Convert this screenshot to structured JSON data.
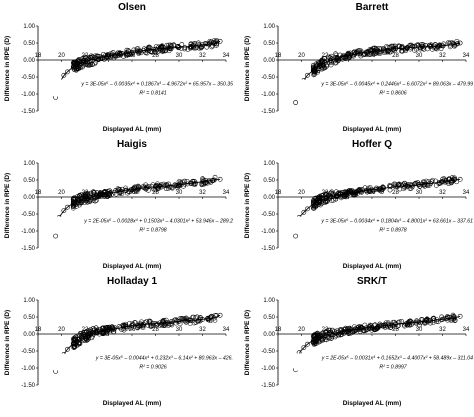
{
  "chart_data": [
    {
      "type": "scatter",
      "title": "Olsen",
      "xlabel": "Displayed AL (mm)",
      "ylabel": "Difference in RPE (D)",
      "xlim": [
        18,
        34
      ],
      "ylim": [
        -1.5,
        1.0
      ],
      "xticks": [
        "18",
        "20",
        "22",
        "24",
        "26",
        "28",
        "30",
        "32",
        "34"
      ],
      "yticks": [
        "-1.50",
        "-1.00",
        "-0.50",
        "0.00",
        "0.50",
        "1.00"
      ],
      "equation": "y = 3E-05x⁵ – 0.0035x⁴ + 0.1867x³ – 4.9672x² + 65.957x – 350.35",
      "r2": "R² = 0.8141",
      "points": [
        [
          19.5,
          -1.1
        ],
        [
          19.8,
          -0.7
        ],
        [
          20.2,
          -0.45
        ],
        [
          20.5,
          -0.35
        ],
        [
          21,
          -0.2
        ],
        [
          21.5,
          -0.12
        ],
        [
          22,
          -0.05
        ],
        [
          22.5,
          0.0
        ],
        [
          23,
          0.04
        ],
        [
          23.5,
          0.08
        ],
        [
          24,
          0.1
        ],
        [
          24.5,
          0.14
        ],
        [
          25,
          0.16
        ],
        [
          25.5,
          0.2
        ],
        [
          26,
          0.22
        ],
        [
          26.5,
          0.25
        ],
        [
          27,
          0.28
        ],
        [
          28,
          0.32
        ],
        [
          29,
          0.35
        ],
        [
          30,
          0.37
        ],
        [
          31,
          0.4
        ],
        [
          32,
          0.45
        ],
        [
          33,
          0.48
        ],
        [
          33.5,
          0.55
        ]
      ]
    },
    {
      "type": "scatter",
      "title": "Barrett",
      "xlabel": "Displayed AL (mm)",
      "ylabel": "Difference in RPE (D)",
      "xlim": [
        18,
        34
      ],
      "ylim": [
        -1.5,
        1.0
      ],
      "xticks": [
        "18",
        "20",
        "22",
        "24",
        "26",
        "28",
        "30",
        "32",
        "34"
      ],
      "yticks": [
        "-1.50",
        "-1.00",
        "-0.50",
        "0.00",
        "0.50",
        "1.00"
      ],
      "equation": "y = 3E-05x⁵ – 0.0045x⁴ + 0.2446x³ – 6.6072x² + 89.063x – 479.99",
      "r2": "R² = 0.8606",
      "points": [
        [
          19.5,
          -1.25
        ],
        [
          19.8,
          -0.9
        ],
        [
          20.2,
          -0.6
        ],
        [
          20.5,
          -0.45
        ],
        [
          21,
          -0.3
        ],
        [
          21.5,
          -0.18
        ],
        [
          22,
          -0.08
        ],
        [
          22.5,
          0.0
        ],
        [
          23,
          0.05
        ],
        [
          23.5,
          0.1
        ],
        [
          24,
          0.13
        ],
        [
          24.5,
          0.16
        ],
        [
          25,
          0.2
        ],
        [
          25.5,
          0.23
        ],
        [
          26,
          0.26
        ],
        [
          26.5,
          0.28
        ],
        [
          27,
          0.3
        ],
        [
          28,
          0.33
        ],
        [
          29,
          0.36
        ],
        [
          30,
          0.38
        ],
        [
          31,
          0.4
        ],
        [
          32,
          0.42
        ],
        [
          33,
          0.45
        ],
        [
          33.5,
          0.5
        ]
      ]
    },
    {
      "type": "scatter",
      "title": "Haigis",
      "xlabel": "Displayed AL (mm)",
      "ylabel": "Difference in RPE (D)",
      "xlim": [
        18,
        34
      ],
      "ylim": [
        -1.5,
        1.0
      ],
      "xticks": [
        "18",
        "20",
        "22",
        "24",
        "26",
        "28",
        "30",
        "32",
        "34"
      ],
      "yticks": [
        "-1.50",
        "-1.00",
        "-0.50",
        "0.00",
        "0.50",
        "1.00"
      ],
      "equation": "y = 2E-05x⁵ – 0.0028x⁴ + 0.1503x³ – 4.0301x² + 53.946x – 289.2",
      "r2": "R² = 0.8798",
      "points": [
        [
          19.5,
          -1.15
        ],
        [
          19.8,
          -0.6
        ],
        [
          20.2,
          -0.4
        ],
        [
          20.5,
          -0.3
        ],
        [
          21,
          -0.18
        ],
        [
          21.5,
          -0.1
        ],
        [
          22,
          -0.04
        ],
        [
          22.5,
          0.0
        ],
        [
          23,
          0.04
        ],
        [
          23.5,
          0.08
        ],
        [
          24,
          0.11
        ],
        [
          24.5,
          0.14
        ],
        [
          25,
          0.17
        ],
        [
          25.5,
          0.2
        ],
        [
          26,
          0.22
        ],
        [
          26.5,
          0.24
        ],
        [
          27,
          0.27
        ],
        [
          28,
          0.3
        ],
        [
          29,
          0.33
        ],
        [
          30,
          0.36
        ],
        [
          31,
          0.4
        ],
        [
          32,
          0.45
        ],
        [
          33,
          0.5
        ],
        [
          33.5,
          0.52
        ]
      ]
    },
    {
      "type": "scatter",
      "title": "Hoffer Q",
      "xlabel": "Displayed AL (mm)",
      "ylabel": "Difference in RPE (D)",
      "xlim": [
        18,
        34
      ],
      "ylim": [
        -1.5,
        1.0
      ],
      "xticks": [
        "18",
        "20",
        "22",
        "24",
        "26",
        "28",
        "30",
        "32",
        "34"
      ],
      "yticks": [
        "-1.50",
        "-1.00",
        "-0.50",
        "0.00",
        "0.50",
        "1.00"
      ],
      "equation": "y = 3E-05x⁵ – 0.0034x⁴ + 0.1804x³ – 4.8001x² + 63.661x – 337.61",
      "r2": "R² = 0.8978",
      "points": [
        [
          19.5,
          -1.15
        ],
        [
          19.8,
          -0.6
        ],
        [
          20.2,
          -0.45
        ],
        [
          20.5,
          -0.35
        ],
        [
          21,
          -0.2
        ],
        [
          21.5,
          -0.12
        ],
        [
          22,
          -0.05
        ],
        [
          22.5,
          0.0
        ],
        [
          23,
          0.04
        ],
        [
          23.5,
          0.07
        ],
        [
          24,
          0.1
        ],
        [
          24.5,
          0.13
        ],
        [
          25,
          0.16
        ],
        [
          25.5,
          0.19
        ],
        [
          26,
          0.21
        ],
        [
          26.5,
          0.23
        ],
        [
          27,
          0.26
        ],
        [
          28,
          0.3
        ],
        [
          29,
          0.33
        ],
        [
          30,
          0.36
        ],
        [
          31,
          0.4
        ],
        [
          32,
          0.44
        ],
        [
          33,
          0.5
        ],
        [
          33.5,
          0.52
        ]
      ]
    },
    {
      "type": "scatter",
      "title": "Holladay 1",
      "xlabel": "Displayed AL (mm)",
      "ylabel": "Difference in RPE (D)",
      "xlim": [
        18,
        34
      ],
      "ylim": [
        -1.5,
        1.0
      ],
      "xticks": [
        "18",
        "20",
        "22",
        "24",
        "26",
        "28",
        "30",
        "32",
        "34"
      ],
      "yticks": [
        "-1.50",
        "-1.00",
        "-0.50",
        "0.00",
        "0.50",
        "1.00"
      ],
      "equation": "y = 3E-05x⁵ – 0.0044x⁴ + 0.232x³ – 6.14x² + 80.963x – 426.",
      "r2": "R² = 0.9026",
      "points": [
        [
          19.5,
          -1.1
        ],
        [
          19.8,
          -0.85
        ],
        [
          20.2,
          -0.6
        ],
        [
          20.5,
          -0.45
        ],
        [
          21,
          -0.28
        ],
        [
          21.5,
          -0.15
        ],
        [
          22,
          -0.06
        ],
        [
          22.5,
          0.0
        ],
        [
          23,
          0.05
        ],
        [
          23.5,
          0.09
        ],
        [
          24,
          0.12
        ],
        [
          24.5,
          0.15
        ],
        [
          25,
          0.18
        ],
        [
          25.5,
          0.21
        ],
        [
          26,
          0.24
        ],
        [
          26.5,
          0.26
        ],
        [
          27,
          0.28
        ],
        [
          28,
          0.31
        ],
        [
          29,
          0.34
        ],
        [
          30,
          0.37
        ],
        [
          31,
          0.4
        ],
        [
          32,
          0.43
        ],
        [
          33,
          0.47
        ],
        [
          33.5,
          0.55
        ]
      ]
    },
    {
      "type": "scatter",
      "title": "SRK/T",
      "xlabel": "Displayed AL (mm)",
      "ylabel": "Difference in RPE (D)",
      "xlim": [
        18,
        34
      ],
      "ylim": [
        -1.5,
        1.0
      ],
      "xticks": [
        "18",
        "20",
        "22",
        "24",
        "26",
        "28",
        "30",
        "32",
        "34"
      ],
      "yticks": [
        "-1.50",
        "-1.00",
        "-0.50",
        "0.00",
        "0.50",
        "1.00"
      ],
      "equation": "y = 2E-05x⁵ – 0.0031x⁴ + 0.1652x³ – 4.4007x² + 58.489x – 311.04",
      "r2": "R² = 0.8997",
      "points": [
        [
          19.5,
          -1.05
        ],
        [
          19.8,
          -0.55
        ],
        [
          20.2,
          -0.4
        ],
        [
          20.5,
          -0.3
        ],
        [
          21,
          -0.18
        ],
        [
          21.5,
          -0.1
        ],
        [
          22,
          -0.04
        ],
        [
          22.5,
          0.0
        ],
        [
          23,
          0.04
        ],
        [
          23.5,
          0.07
        ],
        [
          24,
          0.1
        ],
        [
          24.5,
          0.13
        ],
        [
          25,
          0.15
        ],
        [
          25.5,
          0.18
        ],
        [
          26,
          0.2
        ],
        [
          26.5,
          0.22
        ],
        [
          27,
          0.25
        ],
        [
          28,
          0.28
        ],
        [
          29,
          0.32
        ],
        [
          30,
          0.35
        ],
        [
          31,
          0.39
        ],
        [
          32,
          0.43
        ],
        [
          33,
          0.47
        ],
        [
          33.5,
          0.52
        ]
      ]
    }
  ]
}
